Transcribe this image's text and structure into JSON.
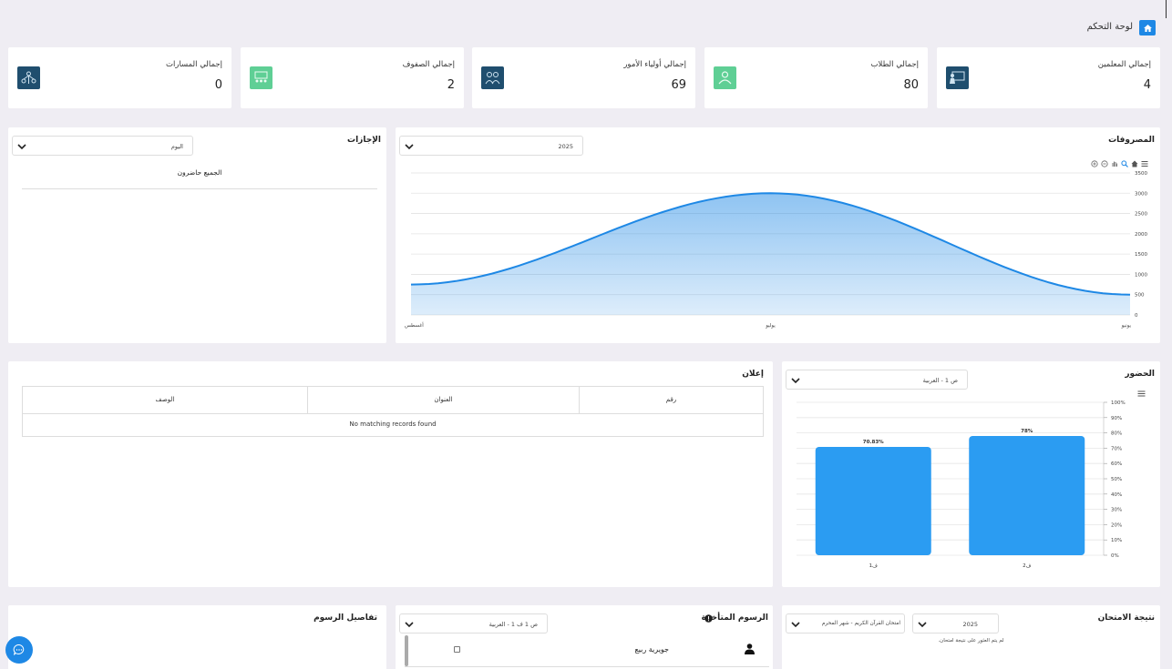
{
  "header": {
    "title": "لوحة التحكم"
  },
  "stats": [
    {
      "label": "إجمالي المعلمين",
      "value": "4",
      "icon": "teacher-icon"
    },
    {
      "label": "إجمالي الطلاب",
      "value": "80",
      "icon": "student-icon"
    },
    {
      "label": "إجمالي أولياء الأمور",
      "value": "69",
      "icon": "parents-icon"
    },
    {
      "label": "إجمالي الصفوف",
      "value": "2",
      "icon": "classroom-icon"
    },
    {
      "label": "إجمالي المسارات",
      "value": "0",
      "icon": "tracks-icon"
    }
  ],
  "expenses": {
    "title": "المصروفات",
    "year_select": "2025",
    "toolbar": [
      "zoom-in-icon",
      "zoom-out-icon",
      "zoom-icon",
      "pan-icon",
      "home-icon",
      "menu-icon"
    ],
    "chart_data": {
      "type": "area",
      "categories": [
        "أغسطس",
        "يوليو",
        "يونيو"
      ],
      "yticks": [
        "3500",
        "3000",
        "2500",
        "2000",
        "1500",
        "1000",
        "500",
        "0"
      ],
      "ylim": [
        0,
        3500
      ],
      "series": [
        {
          "values": [
            750,
            3000,
            500
          ]
        }
      ],
      "color": "#1e88e5"
    }
  },
  "leaves": {
    "title": "الإجازات",
    "select": "اليوم",
    "message": "الجميع حاضرون"
  },
  "announcement": {
    "title": "إعلان",
    "columns": [
      "رقم",
      "العنوان",
      "الوصف"
    ],
    "empty": "No matching records found"
  },
  "attendance": {
    "title": "الحضور",
    "select": "ص 1 - العربية",
    "chart_data": {
      "type": "bar",
      "categories": [
        "ف2",
        "ف1"
      ],
      "values": [
        78,
        70.83
      ],
      "value_labels": [
        "78%",
        "70.83%"
      ],
      "yticks": [
        "100%",
        "90%",
        "80%",
        "70%",
        "60%",
        "50%",
        "40%",
        "30%",
        "20%",
        "10%",
        "0%"
      ],
      "ylim": [
        0,
        100
      ],
      "color": "#2b9cf2"
    }
  },
  "exam": {
    "title": "نتيجة الامتحان",
    "year_select": "2025",
    "exam_select": "امتحان القرآن الكريم - شهر المحرم",
    "message": "لم يتم العثور على نتيجة امتحان."
  },
  "late_fees": {
    "title": "الرسوم المتأخرة",
    "select": "ص 1 ف 1 - العربية",
    "rows": [
      {
        "name": "جويرية ربيع"
      }
    ]
  },
  "fee_details": {
    "title": "تفاصيل الرسوم"
  }
}
